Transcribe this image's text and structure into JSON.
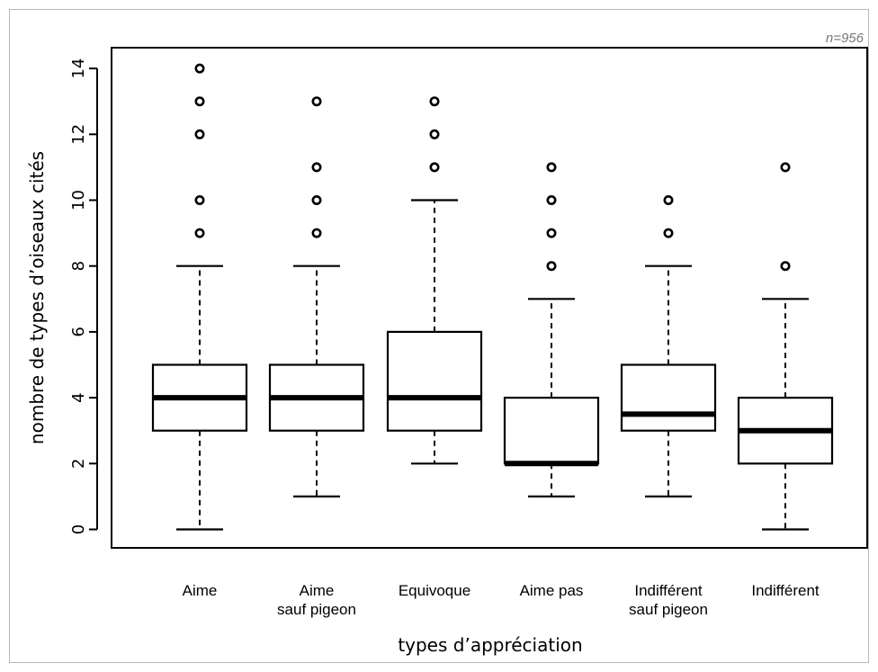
{
  "note": "n=956",
  "chart_data": {
    "type": "boxplot",
    "xlabel": "types d’appréciation",
    "ylabel": "nombre de types d’oiseaux cités",
    "ylim": [
      -0.6,
      14.6
    ],
    "yticks": [
      0,
      2,
      4,
      6,
      8,
      10,
      12,
      14
    ],
    "grid": false,
    "categories": [
      [
        "Aime"
      ],
      [
        "Aime",
        "sauf pigeon"
      ],
      [
        "Equivoque"
      ],
      [
        "Aime pas"
      ],
      [
        "Indifférent",
        "sauf pigeon"
      ],
      [
        "Indifférent"
      ]
    ],
    "boxes": [
      {
        "whisker_low": 0,
        "q1": 3,
        "median": 4,
        "q3": 5,
        "whisker_high": 8,
        "outliers": [
          9,
          10,
          12,
          13,
          14
        ]
      },
      {
        "whisker_low": 1,
        "q1": 3,
        "median": 4,
        "q3": 5,
        "whisker_high": 8,
        "outliers": [
          9,
          10,
          11,
          13
        ]
      },
      {
        "whisker_low": 2,
        "q1": 3,
        "median": 4,
        "q3": 6,
        "whisker_high": 10,
        "outliers": [
          11,
          12,
          13
        ]
      },
      {
        "whisker_low": 1,
        "q1": 2,
        "median": 2,
        "q3": 4,
        "whisker_high": 7,
        "outliers": [
          8,
          9,
          10,
          11
        ]
      },
      {
        "whisker_low": 1,
        "q1": 3,
        "median": 3.5,
        "q3": 5,
        "whisker_high": 8,
        "outliers": [
          9,
          10
        ]
      },
      {
        "whisker_low": 0,
        "q1": 2,
        "median": 3,
        "q3": 4,
        "whisker_high": 7,
        "outliers": [
          8,
          11
        ]
      }
    ]
  }
}
